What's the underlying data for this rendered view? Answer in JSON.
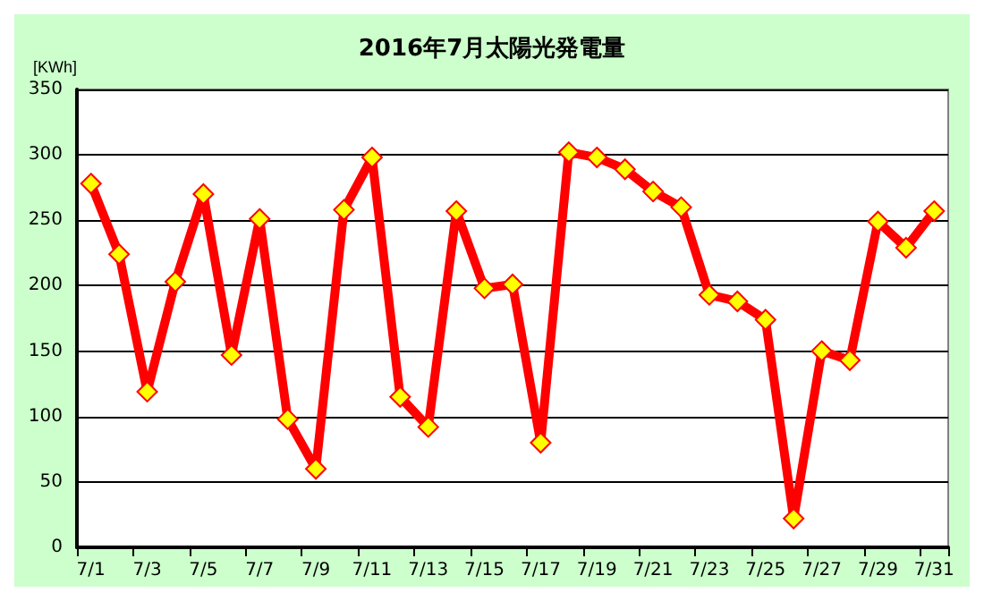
{
  "chart_data": {
    "type": "line",
    "title": "2016年7月太陽光発電量",
    "ylabel": "[KWh]",
    "categories": [
      "7/1",
      null,
      "7/3",
      null,
      "7/5",
      null,
      "7/7",
      null,
      "7/9",
      null,
      "7/11",
      null,
      "7/13",
      null,
      "7/15",
      null,
      "7/17",
      null,
      "7/19",
      null,
      "7/21",
      null,
      "7/23",
      null,
      "7/25",
      null,
      "7/27",
      null,
      "7/29",
      null,
      "7/31"
    ],
    "series": [
      {
        "color": "#ff0000",
        "values": [
          278,
          224,
          119,
          203,
          270,
          147,
          251,
          98,
          60,
          258,
          298,
          115,
          92,
          257,
          198,
          201,
          80,
          302,
          298,
          289,
          272,
          260,
          193,
          188,
          174,
          22,
          150,
          143,
          249,
          229,
          257
        ]
      }
    ],
    "ylim": [
      0,
      350
    ],
    "yticks": [
      0,
      50,
      100,
      150,
      200,
      250,
      300,
      350
    ],
    "grid": "y",
    "marker": "diamond",
    "line_style": "solid"
  }
}
